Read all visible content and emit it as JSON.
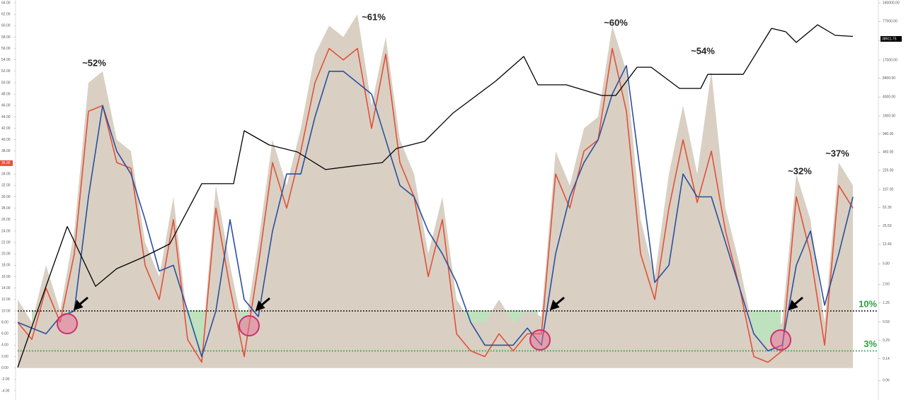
{
  "chart_data": {
    "type": "line",
    "annotations": [
      "~52%",
      "~61%",
      "~60%",
      "~54%",
      "~32%",
      "~37%"
    ],
    "x": [
      0,
      1,
      2,
      3,
      4,
      5,
      6,
      7,
      8,
      9,
      10,
      11,
      12,
      13,
      14,
      15,
      16,
      17,
      18,
      19,
      20,
      21,
      22,
      23,
      24,
      25,
      26,
      27,
      28,
      29,
      30,
      31,
      32,
      33,
      34,
      35,
      36,
      37,
      38,
      39,
      40,
      41,
      42,
      43,
      44,
      45,
      46,
      47,
      48,
      49,
      50,
      51,
      52,
      53,
      54,
      55,
      56,
      57,
      58,
      59
    ],
    "xlim": [
      0,
      59
    ],
    "ylim": [
      -4,
      64
    ],
    "yticks": [
      {
        "value": -4,
        "label": "-4.00"
      },
      {
        "value": -2,
        "label": "-2.00"
      },
      {
        "value": 0,
        "label": "0.00"
      },
      {
        "value": 2,
        "label": "2.00"
      },
      {
        "value": 4,
        "label": "4.00"
      },
      {
        "value": 6,
        "label": "6.00"
      },
      {
        "value": 8,
        "label": "8.00"
      },
      {
        "value": 10,
        "label": "10.00"
      },
      {
        "value": 12,
        "label": "12.00"
      },
      {
        "value": 14,
        "label": "14.00"
      },
      {
        "value": 16,
        "label": "16.00"
      },
      {
        "value": 18,
        "label": "18.00"
      },
      {
        "value": 20,
        "label": "20.00"
      },
      {
        "value": 22,
        "label": "22.00"
      },
      {
        "value": 24,
        "label": "24.00"
      },
      {
        "value": 26,
        "label": "26.00"
      },
      {
        "value": 28,
        "label": "28.00"
      },
      {
        "value": 30,
        "label": "30.00"
      },
      {
        "value": 32,
        "label": "32.00"
      },
      {
        "value": 34,
        "label": "34.00"
      },
      {
        "value": 36,
        "label": "36.00"
      },
      {
        "value": 38,
        "label": "38.00"
      },
      {
        "value": 40,
        "label": "40.00"
      },
      {
        "value": 42,
        "label": "42.00"
      },
      {
        "value": 44,
        "label": "44.00"
      },
      {
        "value": 46,
        "label": "46.00"
      },
      {
        "value": 48,
        "label": "48.00"
      },
      {
        "value": 50,
        "label": "50.00"
      },
      {
        "value": 52,
        "label": "52.00"
      },
      {
        "value": 54,
        "label": "54.00"
      },
      {
        "value": 56,
        "label": "56.00"
      },
      {
        "value": 58,
        "label": "58.00"
      },
      {
        "value": 60,
        "label": "60.00"
      },
      {
        "value": 62,
        "label": "62.00"
      },
      {
        "value": 64,
        "label": "64.00"
      }
    ],
    "y2lim": [
      0.04,
      160000
    ],
    "y2log": true,
    "y2ticks": [
      {
        "value": 160000,
        "label": "160000.00"
      },
      {
        "value": 77000,
        "label": "77000.00"
      },
      {
        "value": 36000,
        "label": "36000.00"
      },
      {
        "value": 17000,
        "label": "17000.00"
      },
      {
        "value": 8400,
        "label": "8400.00"
      },
      {
        "value": 4000,
        "label": "4000.00"
      },
      {
        "value": 1900,
        "label": "1900.00"
      },
      {
        "value": 940,
        "label": "940.00"
      },
      {
        "value": 460,
        "label": "460.00"
      },
      {
        "value": 225,
        "label": "225.00"
      },
      {
        "value": 107,
        "label": "107.00"
      },
      {
        "value": 52.3,
        "label": "52.30"
      },
      {
        "value": 25.5,
        "label": "25.50"
      },
      {
        "value": 12.4,
        "label": "12.40"
      },
      {
        "value": 5.8,
        "label": "5.80"
      },
      {
        "value": 2.6,
        "label": "2.60"
      },
      {
        "value": 1.25,
        "label": "1.25"
      },
      {
        "value": 0.59,
        "label": "0.59"
      },
      {
        "value": 0.29,
        "label": "0.29"
      },
      {
        "value": 0.14,
        "label": "0.14"
      },
      {
        "value": 0.06,
        "label": "0.06"
      }
    ],
    "grid": false,
    "reference_lines": [
      {
        "value": 10,
        "label": "10%",
        "color": "#1a1a1a"
      },
      {
        "value": 3,
        "label": "3%",
        "color": "#2e9e3e"
      }
    ],
    "value_tags": [
      {
        "value": 35.9,
        "label": "35.90",
        "color": "#e0513a",
        "axis": "y"
      },
      {
        "value": 38911.75,
        "label": "38911.75",
        "color": "#000000",
        "axis": "y2"
      }
    ],
    "series": [
      {
        "kind": "area",
        "color": "#d9d0c3",
        "values": [
          12,
          8,
          18,
          10,
          24,
          50,
          52,
          40,
          38,
          22,
          16,
          30,
          8,
          3,
          32,
          18,
          6,
          22,
          40,
          32,
          42,
          55,
          60,
          58,
          62,
          46,
          58,
          40,
          34,
          20,
          30,
          12,
          8,
          8,
          12,
          8,
          10,
          9,
          38,
          32,
          42,
          44,
          60,
          52,
          26,
          16,
          34,
          46,
          34,
          52,
          28,
          18,
          6,
          4,
          8,
          34,
          26,
          8,
          36,
          32
        ]
      },
      {
        "kind": "line",
        "color": "#e0513a",
        "values": [
          8,
          5,
          14,
          8,
          20,
          45,
          46,
          36,
          35,
          18,
          12,
          26,
          5,
          1,
          28,
          14,
          2,
          18,
          36,
          28,
          38,
          50,
          56,
          54,
          56,
          42,
          55,
          36,
          30,
          16,
          26,
          6,
          3,
          2,
          6,
          3,
          6,
          6,
          34,
          28,
          38,
          40,
          56,
          45,
          20,
          12,
          28,
          40,
          29,
          38,
          24,
          14,
          2,
          1,
          3,
          30,
          20,
          4,
          32,
          28
        ]
      },
      {
        "kind": "line",
        "color": "#2b4fa0",
        "values": [
          8,
          7,
          6,
          9,
          10,
          30,
          46,
          38,
          34,
          26,
          17,
          18,
          10,
          2,
          10,
          26,
          12,
          9,
          24,
          34,
          34,
          44,
          52,
          52,
          50,
          48,
          40,
          32,
          30,
          24,
          20,
          15,
          8,
          4,
          4,
          4,
          7,
          4,
          20,
          30,
          36,
          40,
          48,
          53,
          34,
          15,
          18,
          34,
          30,
          30,
          22,
          14,
          6,
          3,
          4,
          18,
          24,
          11,
          20,
          30
        ]
      },
      {
        "kind": "line",
        "color": "#000000",
        "axis": "y2",
        "x": [
          0,
          2,
          3.5,
          5.5,
          7,
          8.75,
          10.75,
          13,
          15.25,
          16,
          17.75,
          19.75,
          21.75,
          23.75,
          25.75,
          26.75,
          28.75,
          30.75,
          33.75,
          35.75,
          36.75,
          38.75,
          41.25,
          42.25,
          43.75,
          44.75,
          46.75,
          48.25,
          48.75,
          51.25,
          53.25,
          54.25,
          55,
          56.5,
          57.75,
          59
        ],
        "values": [
          0.1,
          2.4,
          25,
          2.4,
          4.8,
          7.3,
          12.7,
          134,
          134,
          1065,
          612,
          464,
          233,
          268,
          306,
          532,
          704,
          2130,
          7400,
          19560,
          6440,
          6440,
          4240,
          4240,
          12840,
          12840,
          5600,
          5600,
          9720,
          9720,
          58900,
          51600,
          33900,
          67700,
          44800,
          43000
        ]
      }
    ]
  }
}
